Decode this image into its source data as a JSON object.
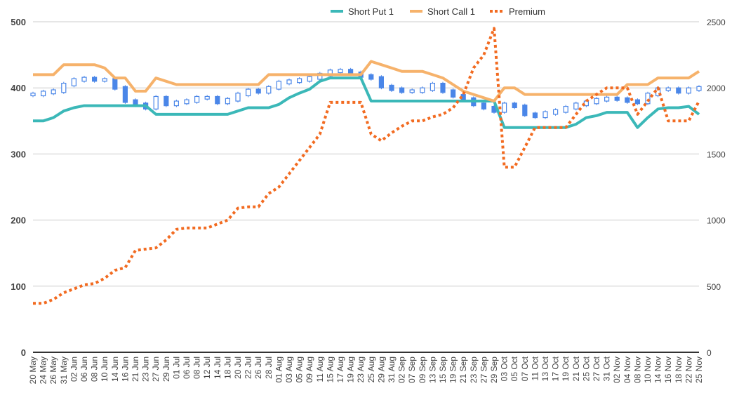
{
  "chart_data": {
    "type": "line",
    "title": "",
    "xlabel": "",
    "ylabel": "",
    "ylim": [
      0,
      500
    ],
    "y2lim": [
      0,
      2500
    ],
    "yticks": [
      "0",
      "100",
      "200",
      "300",
      "400",
      "500"
    ],
    "y2ticks": [
      "0",
      "500",
      "1000",
      "1500",
      "2000",
      "2500"
    ],
    "grid": true,
    "legend": "top-center",
    "x": [
      "20 May",
      "24 May",
      "26 May",
      "31 May",
      "02 Jun",
      "06 Jun",
      "08 Jun",
      "10 Jun",
      "14 Jun",
      "16 Jun",
      "21 Jun",
      "23 Jun",
      "27 Jun",
      "29 Jun",
      "01 Jul",
      "06 Jul",
      "08 Jul",
      "12 Jul",
      "14 Jul",
      "18 Jul",
      "20 Jul",
      "22 Jul",
      "26 Jul",
      "28 Jul",
      "01 Aug",
      "03 Aug",
      "05 Aug",
      "09 Aug",
      "11 Aug",
      "15 Aug",
      "17 Aug",
      "19 Aug",
      "23 Aug",
      "25 Aug",
      "29 Aug",
      "31 Aug",
      "02 Sep",
      "07 Sep",
      "09 Sep",
      "13 Sep",
      "15 Sep",
      "19 Sep",
      "21 Sep",
      "23 Sep",
      "27 Sep",
      "29 Sep",
      "03 Oct",
      "05 Oct",
      "07 Oct",
      "11 Oct",
      "13 Oct",
      "17 Oct",
      "19 Oct",
      "21 Oct",
      "25 Oct",
      "27 Oct",
      "31 Oct",
      "02 Nov",
      "04 Nov",
      "08 Nov",
      "10 Nov",
      "14 Nov",
      "16 Nov",
      "18 Nov",
      "22 Nov",
      "25 Nov"
    ],
    "series": [
      {
        "name": "Short Put 1",
        "axis": "left",
        "color": "#3bb8b8",
        "values": [
          350,
          350,
          355,
          365,
          370,
          373,
          373,
          373,
          373,
          373,
          373,
          373,
          360,
          360,
          360,
          360,
          360,
          360,
          360,
          360,
          365,
          370,
          370,
          370,
          375,
          385,
          392,
          398,
          410,
          415,
          415,
          415,
          415,
          380,
          380,
          380,
          380,
          380,
          380,
          380,
          380,
          380,
          380,
          380,
          380,
          380,
          340,
          340,
          340,
          340,
          340,
          340,
          340,
          345,
          355,
          358,
          363,
          363,
          363,
          340,
          355,
          368,
          370,
          370,
          372,
          360
        ]
      },
      {
        "name": "Short Call 1",
        "axis": "left",
        "color": "#f6b26b",
        "values": [
          420,
          420,
          420,
          435,
          435,
          435,
          435,
          430,
          415,
          415,
          395,
          395,
          415,
          410,
          405,
          405,
          405,
          405,
          405,
          405,
          405,
          405,
          405,
          420,
          420,
          420,
          420,
          420,
          420,
          420,
          420,
          420,
          420,
          440,
          435,
          430,
          425,
          425,
          425,
          420,
          415,
          405,
          395,
          390,
          385,
          380,
          400,
          400,
          390,
          390,
          390,
          390,
          390,
          390,
          390,
          390,
          390,
          390,
          405,
          405,
          405,
          415,
          415,
          415,
          415,
          425
        ]
      },
      {
        "name": "Premium",
        "axis": "right",
        "color": "#f26b21",
        "dashed": true,
        "values": [
          370,
          370,
          400,
          450,
          480,
          510,
          520,
          560,
          620,
          640,
          770,
          780,
          790,
          850,
          930,
          940,
          940,
          940,
          970,
          1000,
          1090,
          1100,
          1100,
          1200,
          1250,
          1350,
          1450,
          1550,
          1650,
          1890,
          1890,
          1890,
          1890,
          1650,
          1600,
          1660,
          1710,
          1750,
          1750,
          1780,
          1800,
          1850,
          1950,
          2150,
          2250,
          2450,
          1400,
          1400,
          1550,
          1700,
          1700,
          1700,
          1700,
          1800,
          1900,
          1950,
          2000,
          2000,
          2000,
          1800,
          1900,
          2000,
          1750,
          1750,
          1750,
          1900
        ]
      },
      {
        "name": "",
        "type": "candlestick",
        "axis": "left",
        "color": "#4a86e8",
        "values": [
          390,
          393,
          395,
          405,
          412,
          414,
          412,
          412,
          400,
          380,
          375,
          370,
          385,
          375,
          378,
          380,
          385,
          385,
          378,
          382,
          390,
          396,
          394,
          400,
          408,
          410,
          412,
          415,
          420,
          425,
          426,
          422,
          418,
          415,
          402,
          398,
          395,
          395,
          398,
          405,
          395,
          388,
          383,
          375,
          370,
          365,
          375,
          372,
          360,
          357,
          362,
          365,
          370,
          375,
          378,
          382,
          384,
          383,
          380,
          378,
          390,
          398,
          398,
          394,
          398,
          400
        ]
      }
    ]
  },
  "legend": {
    "items": [
      {
        "label": "Short Put 1",
        "color": "#3bb8b8"
      },
      {
        "label": "Short Call 1",
        "color": "#f6b26b"
      },
      {
        "label": "Premium",
        "color": "#f26b21"
      }
    ]
  }
}
